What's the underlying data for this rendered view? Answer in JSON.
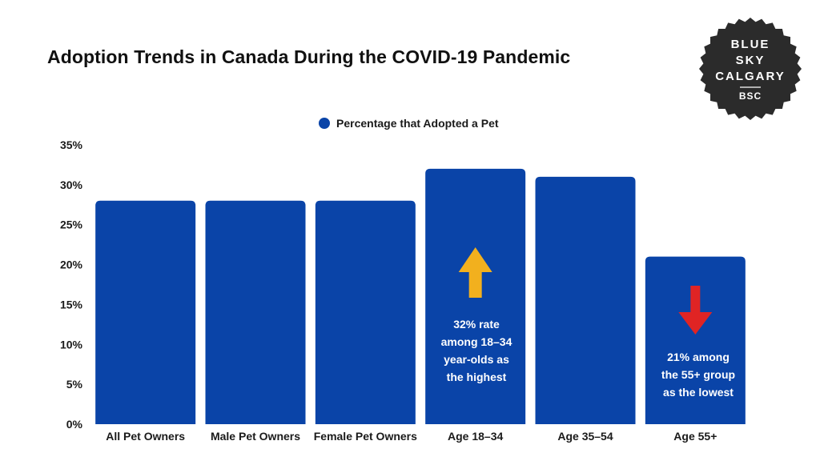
{
  "title": "Adoption Trends in Canada During the COVID-19 Pandemic",
  "logo": {
    "lines": [
      "BLUE",
      "SKY",
      "CALGARY"
    ],
    "abbr": "BSC"
  },
  "colors": {
    "bar": "#0a44a8",
    "up_arrow": "#f2b01e",
    "down_arrow": "#e02424",
    "badge": "#2b2b2b"
  },
  "annotations": {
    "highest": "32% rate\namong 18–34\nyear-olds as\nthe highest",
    "lowest": "21% among\nthe 55+ group\nas the lowest"
  },
  "chart_data": {
    "type": "bar",
    "title": "Adoption Trends in Canada During the COVID-19 Pandemic",
    "categories": [
      "All Pet Owners",
      "Male Pet Owners",
      "Female Pet Owners",
      "Age 18–34",
      "Age 35–54",
      "Age 55+"
    ],
    "series": [
      {
        "name": "Percentage that Adopted a Pet",
        "values": [
          28,
          28,
          28,
          32,
          31,
          21
        ]
      }
    ],
    "ylim": [
      0,
      35
    ],
    "yticks": [
      "0%",
      "5%",
      "10%",
      "15%",
      "20%",
      "25%",
      "30%",
      "35%"
    ],
    "grid": false,
    "legend": "top-center",
    "xlabel": "",
    "ylabel": ""
  }
}
